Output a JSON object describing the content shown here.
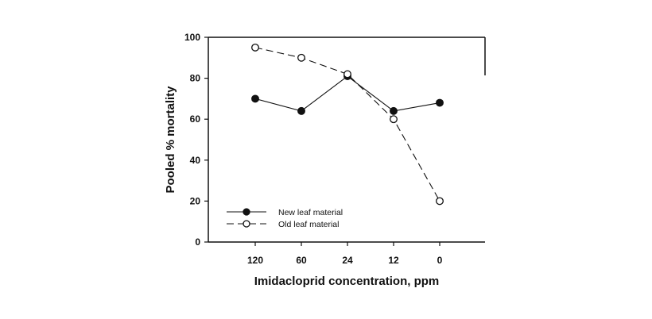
{
  "chart_data": {
    "type": "line",
    "title": "",
    "xlabel": "Imidacloprid concentration, ppm",
    "ylabel": "Pooled % mortality",
    "categories": [
      "120",
      "60",
      "24",
      "12",
      "0"
    ],
    "ylim": [
      0,
      100
    ],
    "yticks": [
      0,
      20,
      40,
      60,
      80,
      100
    ],
    "grid": false,
    "legend_position": "bottom-left",
    "series": [
      {
        "name": "New leaf material",
        "marker": "filled-circle",
        "line_style": "solid",
        "color": "#111111",
        "values": [
          70,
          64,
          81,
          64,
          68
        ]
      },
      {
        "name": "Old leaf material",
        "marker": "open-circle",
        "line_style": "dashed",
        "color": "#111111",
        "values": [
          95,
          90,
          82,
          60,
          20
        ]
      }
    ]
  }
}
